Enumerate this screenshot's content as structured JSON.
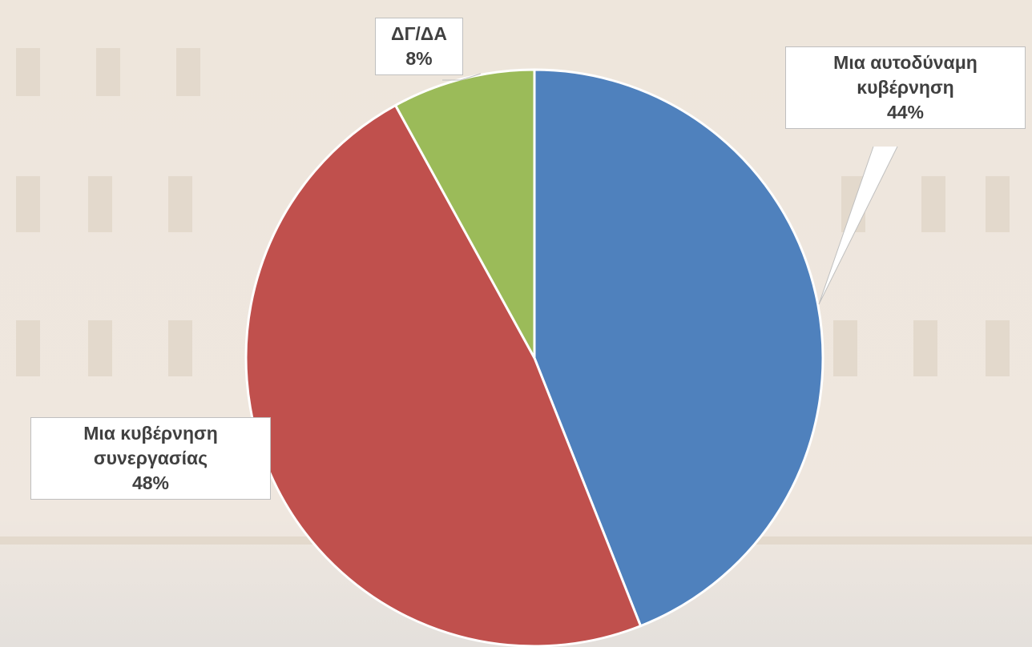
{
  "chart_data": {
    "type": "pie",
    "categories": [
      "Μια αυτοδύναμη κυβέρνηση",
      "Μια κυβέρνηση συνεργασίας",
      "ΔΓ/ΔΑ"
    ],
    "values": [
      44,
      48,
      8
    ],
    "value_labels": [
      "44%",
      "48%",
      "8%"
    ],
    "colors": [
      "#4f81bd",
      "#c0504d",
      "#9bbb59"
    ]
  }
}
